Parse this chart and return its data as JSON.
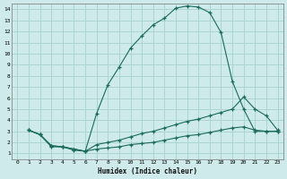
{
  "xlabel": "Humidex (Indice chaleur)",
  "bg_color": "#ceeaea",
  "grid_color": "#aad4d4",
  "line_color": "#1a6b5a",
  "xlim": [
    -0.5,
    23.5
  ],
  "ylim": [
    0.5,
    14.5
  ],
  "xticks": [
    0,
    1,
    2,
    3,
    4,
    5,
    6,
    7,
    8,
    9,
    10,
    11,
    12,
    13,
    14,
    15,
    16,
    17,
    18,
    19,
    20,
    21,
    22,
    23
  ],
  "yticks": [
    1,
    2,
    3,
    4,
    5,
    6,
    7,
    8,
    9,
    10,
    11,
    12,
    13,
    14
  ],
  "curve1_x": [
    1,
    2,
    3,
    4,
    5,
    6,
    7,
    8,
    9,
    10,
    11,
    12,
    13,
    14,
    15,
    16,
    17,
    18,
    19,
    20,
    21,
    22,
    23
  ],
  "curve1_y": [
    3.1,
    2.7,
    1.6,
    1.6,
    1.3,
    1.2,
    4.6,
    7.2,
    8.8,
    10.5,
    11.6,
    12.6,
    13.2,
    14.1,
    14.3,
    14.2,
    13.7,
    11.9,
    7.5,
    5.0,
    3.0,
    3.0,
    3.0
  ],
  "curve2_x": [
    1,
    2,
    3,
    4,
    5,
    6,
    7,
    8,
    9,
    10,
    11,
    12,
    13,
    14,
    15,
    16,
    17,
    18,
    19,
    20,
    21,
    22,
    23
  ],
  "curve2_y": [
    3.1,
    2.7,
    1.7,
    1.6,
    1.4,
    1.2,
    1.8,
    2.0,
    2.2,
    2.5,
    2.8,
    3.0,
    3.3,
    3.6,
    3.9,
    4.1,
    4.4,
    4.7,
    5.0,
    6.1,
    5.0,
    4.4,
    3.1
  ],
  "curve3_x": [
    1,
    2,
    3,
    4,
    5,
    6,
    7,
    8,
    9,
    10,
    11,
    12,
    13,
    14,
    15,
    16,
    17,
    18,
    19,
    20,
    21,
    22,
    23
  ],
  "curve3_y": [
    3.1,
    2.7,
    1.7,
    1.6,
    1.4,
    1.2,
    1.4,
    1.5,
    1.6,
    1.8,
    1.9,
    2.0,
    2.2,
    2.4,
    2.6,
    2.7,
    2.9,
    3.1,
    3.3,
    3.4,
    3.1,
    3.0,
    3.0
  ]
}
